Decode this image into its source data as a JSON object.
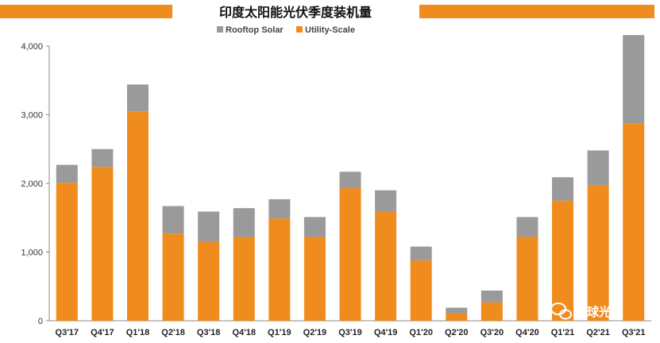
{
  "chart_data": {
    "type": "bar",
    "stacked": true,
    "title": "印度太阳能光伏季度装机量",
    "categories": [
      "Q3'17",
      "Q4'17",
      "Q1'18",
      "Q2'18",
      "Q3'18",
      "Q4'18",
      "Q1'19",
      "Q2'19",
      "Q3'19",
      "Q4'19",
      "Q1'20",
      "Q2'20",
      "Q3'20",
      "Q4'20",
      "Q1'21",
      "Q2'21",
      "Q3'21"
    ],
    "series": [
      {
        "name": "Utility-Scale",
        "color": "#f08c1e",
        "values": [
          2010,
          2240,
          3050,
          1270,
          1150,
          1220,
          1490,
          1220,
          1930,
          1590,
          880,
          110,
          270,
          1220,
          1750,
          1970,
          2870
        ]
      },
      {
        "name": "Rooftop Solar",
        "color": "#9a9a9a",
        "values": [
          260,
          260,
          390,
          400,
          440,
          420,
          280,
          290,
          240,
          310,
          200,
          80,
          170,
          290,
          340,
          510,
          1290
        ]
      }
    ],
    "ylim": [
      0,
      4000
    ],
    "yticks": [
      0,
      1000,
      2000,
      3000,
      4000
    ],
    "ytick_labels": [
      "0",
      "1,000",
      "2,000",
      "3,000",
      "4,000"
    ],
    "xlabel": "",
    "ylabel": "",
    "legend_position": "top-center",
    "grid": false,
    "accent_color": "#f08c1e"
  },
  "watermark": {
    "text": "全球光伏",
    "icon": "wechat-icon"
  }
}
